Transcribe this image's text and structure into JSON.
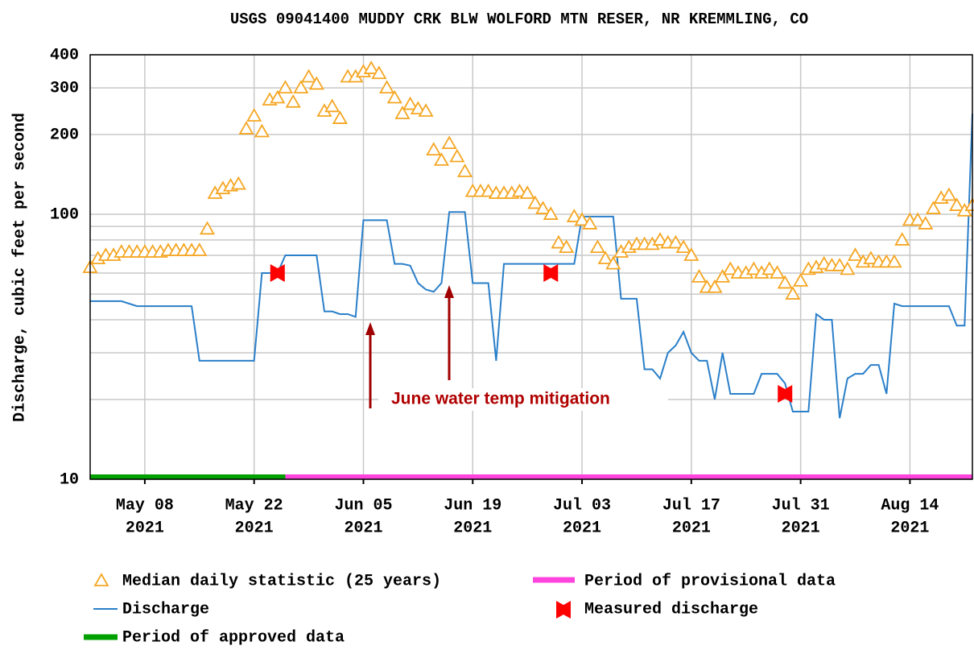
{
  "chart_data": {
    "type": "line",
    "title": "USGS 09041400 MUDDY CRK BLW WOLFORD MTN RESER, NR KREMMLING, CO",
    "y_label": "Discharge, cubic feet per second",
    "log_scale": true,
    "grid": true,
    "xlim": [
      "2021-05-01",
      "2021-08-22"
    ],
    "ylim": [
      10,
      400
    ],
    "yticks": [
      10,
      100,
      200,
      300,
      400
    ],
    "y_minor_gridlines": [
      20,
      30,
      40,
      50,
      60,
      70,
      80,
      90
    ],
    "xticks": [
      {
        "value": "2021-05-08",
        "label": [
          "May 08",
          "2021"
        ]
      },
      {
        "value": "2021-05-22",
        "label": [
          "May 22",
          "2021"
        ]
      },
      {
        "value": "2021-06-05",
        "label": [
          "Jun 05",
          "2021"
        ]
      },
      {
        "value": "2021-06-19",
        "label": [
          "Jun 19",
          "2021"
        ]
      },
      {
        "value": "2021-07-03",
        "label": [
          "Jul 03",
          "2021"
        ]
      },
      {
        "value": "2021-07-17",
        "label": [
          "Jul 17",
          "2021"
        ]
      },
      {
        "value": "2021-07-31",
        "label": [
          "Jul 31",
          "2021"
        ]
      },
      {
        "value": "2021-08-14",
        "label": [
          "Aug 14",
          "2021"
        ]
      }
    ],
    "x": [
      "2021-05-01",
      "2021-05-02",
      "2021-05-03",
      "2021-05-04",
      "2021-05-05",
      "2021-05-06",
      "2021-05-07",
      "2021-05-08",
      "2021-05-09",
      "2021-05-10",
      "2021-05-11",
      "2021-05-12",
      "2021-05-13",
      "2021-05-14",
      "2021-05-15",
      "2021-05-16",
      "2021-05-17",
      "2021-05-18",
      "2021-05-19",
      "2021-05-20",
      "2021-05-21",
      "2021-05-22",
      "2021-05-23",
      "2021-05-24",
      "2021-05-25",
      "2021-05-26",
      "2021-05-27",
      "2021-05-28",
      "2021-05-29",
      "2021-05-30",
      "2021-05-31",
      "2021-06-01",
      "2021-06-02",
      "2021-06-03",
      "2021-06-04",
      "2021-06-05",
      "2021-06-06",
      "2021-06-07",
      "2021-06-08",
      "2021-06-09",
      "2021-06-10",
      "2021-06-11",
      "2021-06-12",
      "2021-06-13",
      "2021-06-14",
      "2021-06-15",
      "2021-06-16",
      "2021-06-17",
      "2021-06-18",
      "2021-06-19",
      "2021-06-20",
      "2021-06-21",
      "2021-06-22",
      "2021-06-23",
      "2021-06-24",
      "2021-06-25",
      "2021-06-26",
      "2021-06-27",
      "2021-06-28",
      "2021-06-29",
      "2021-06-30",
      "2021-07-01",
      "2021-07-02",
      "2021-07-03",
      "2021-07-04",
      "2021-07-05",
      "2021-07-06",
      "2021-07-07",
      "2021-07-08",
      "2021-07-09",
      "2021-07-10",
      "2021-07-11",
      "2021-07-12",
      "2021-07-13",
      "2021-07-14",
      "2021-07-15",
      "2021-07-16",
      "2021-07-17",
      "2021-07-18",
      "2021-07-19",
      "2021-07-20",
      "2021-07-21",
      "2021-07-22",
      "2021-07-23",
      "2021-07-24",
      "2021-07-25",
      "2021-07-26",
      "2021-07-27",
      "2021-07-28",
      "2021-07-29",
      "2021-07-30",
      "2021-07-31",
      "2021-08-01",
      "2021-08-02",
      "2021-08-03",
      "2021-08-04",
      "2021-08-05",
      "2021-08-06",
      "2021-08-07",
      "2021-08-08",
      "2021-08-09",
      "2021-08-10",
      "2021-08-11",
      "2021-08-12",
      "2021-08-13",
      "2021-08-14",
      "2021-08-15",
      "2021-08-16",
      "2021-08-17",
      "2021-08-18",
      "2021-08-19",
      "2021-08-20",
      "2021-08-21",
      "2021-08-22"
    ],
    "series": [
      {
        "name": "Median daily statistic (25 years)",
        "kind": "marker",
        "color": "#f5a623",
        "values": [
          63,
          68,
          70,
          70,
          72,
          72,
          72,
          72,
          72,
          72,
          73,
          73,
          73,
          73,
          73,
          88,
          120,
          125,
          128,
          130,
          210,
          235,
          205,
          270,
          275,
          300,
          265,
          300,
          330,
          310,
          245,
          255,
          230,
          330,
          330,
          345,
          355,
          340,
          300,
          275,
          240,
          260,
          250,
          245,
          175,
          160,
          185,
          165,
          145,
          122,
          122,
          122,
          120,
          120,
          120,
          122,
          120,
          110,
          105,
          100,
          78,
          75,
          98,
          95,
          92,
          75,
          68,
          65,
          72,
          75,
          77,
          77,
          77,
          80,
          78,
          78,
          75,
          70,
          58,
          53,
          53,
          58,
          62,
          60,
          60,
          62,
          60,
          62,
          60,
          55,
          50,
          56,
          62,
          63,
          65,
          64,
          64,
          62,
          70,
          66,
          68,
          66,
          66,
          66,
          80,
          95,
          95,
          92,
          105,
          115,
          118,
          108,
          103,
          108
        ]
      },
      {
        "name": "Discharge",
        "kind": "line",
        "color": "#2a7fc9",
        "values": [
          47,
          47,
          47,
          47,
          47,
          46,
          45,
          45,
          45,
          45,
          45,
          45,
          45,
          45,
          28,
          28,
          28,
          28,
          28,
          28,
          28,
          28,
          60,
          60,
          60,
          70,
          70,
          70,
          70,
          70,
          43,
          43,
          42,
          42,
          41,
          95,
          95,
          95,
          95,
          65,
          65,
          64,
          55,
          52,
          51,
          55,
          102,
          102,
          102,
          55,
          55,
          55,
          28,
          65,
          65,
          65,
          65,
          65,
          65,
          65,
          65,
          65,
          65,
          98,
          98,
          98,
          98,
          98,
          48,
          48,
          48,
          26,
          26,
          24,
          30,
          32,
          36,
          30,
          28,
          28,
          20,
          30,
          21,
          21,
          21,
          21,
          25,
          25,
          25,
          23,
          18,
          18,
          18,
          42,
          40,
          40,
          17,
          24,
          25,
          25,
          27,
          27,
          21,
          46,
          45,
          45,
          45,
          45,
          45,
          45,
          45,
          38,
          38,
          240
        ]
      }
    ],
    "measured": {
      "name": "Measured discharge",
      "color": "#ff0000",
      "x": [
        "2021-05-25",
        "2021-06-29",
        "2021-07-29"
      ],
      "values": [
        60,
        60,
        21
      ]
    },
    "periods": [
      {
        "name": "Period of approved data",
        "color": "#00a000",
        "x": [
          "2021-05-01",
          "2021-05-26"
        ]
      },
      {
        "name": "Period of provisional data",
        "color": "#ff44dd",
        "x": [
          "2021-05-26",
          "2021-08-22"
        ]
      }
    ],
    "annotation": "June water temp mitigation"
  }
}
